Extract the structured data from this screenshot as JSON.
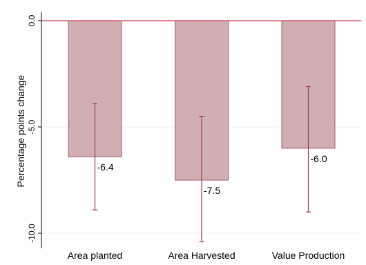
{
  "chart_data": {
    "type": "bar",
    "title": "",
    "xlabel": "",
    "ylabel": "Percentage points change",
    "categories": [
      "Area planted",
      "Area Harvested",
      "Value Production"
    ],
    "series": [
      {
        "values": [
          -6.4,
          -7.5,
          -6.0
        ],
        "ci_low": [
          -8.9,
          -10.4,
          -9.0
        ],
        "ci_high": [
          -3.9,
          -4.5,
          -3.1
        ]
      }
    ],
    "data_labels": [
      "-6.4",
      "-7.5",
      "-6.0"
    ],
    "ylim": [
      -10.7,
      0.4
    ],
    "yticks": [
      0.0,
      -5.0,
      -10.0
    ],
    "ytick_labels": [
      "0.0",
      "-5.0",
      "-10.0"
    ],
    "grid": true,
    "reference_line": 0,
    "colors": {
      "bar_fill": "#d1aeb2",
      "bar_stroke": "#a15a65",
      "error_bar": "#9e3b48",
      "reference_line": "#cf5c6e",
      "grid": "#ebebeb",
      "axis": "#000000"
    }
  }
}
